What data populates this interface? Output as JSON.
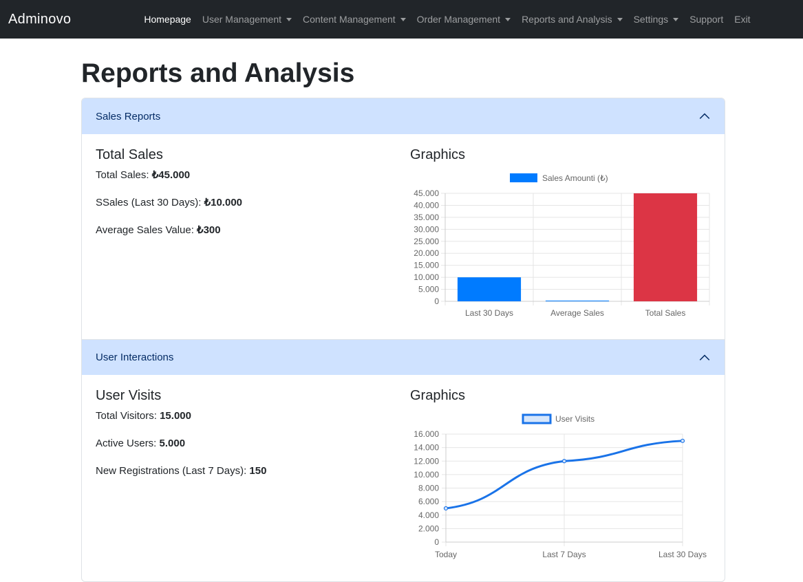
{
  "navbar": {
    "brand": "Adminovo",
    "items": [
      {
        "label": "Homepage",
        "active": true,
        "dropdown": false
      },
      {
        "label": "User Management",
        "active": false,
        "dropdown": true
      },
      {
        "label": "Content Management",
        "active": false,
        "dropdown": true
      },
      {
        "label": "Order Management",
        "active": false,
        "dropdown": true
      },
      {
        "label": "Reports and Analysis",
        "active": false,
        "dropdown": true
      },
      {
        "label": "Settings",
        "active": false,
        "dropdown": true
      },
      {
        "label": "Support",
        "active": false,
        "dropdown": false
      },
      {
        "label": "Exit",
        "active": false,
        "dropdown": false
      }
    ]
  },
  "page": {
    "title": "Reports and Analysis"
  },
  "sections": {
    "sales": {
      "header": "Sales Reports",
      "heading": "Total Sales",
      "graphics_heading": "Graphics",
      "stats": [
        {
          "label": "Total Sales: ",
          "value": "₺45.000"
        },
        {
          "label": "SSales (Last 30 Days): ",
          "value": "₺10.000"
        },
        {
          "label": "Average Sales Value: ",
          "value": "₺300"
        }
      ]
    },
    "users": {
      "header": "User Interactions",
      "heading": "User Visits",
      "graphics_heading": "Graphics",
      "stats": [
        {
          "label": "Total Visitors: ",
          "value": "15.000"
        },
        {
          "label": "Active Users: ",
          "value": "5.000"
        },
        {
          "label": "New Registrations (Last 7 Days): ",
          "value": "150"
        }
      ]
    }
  },
  "colors": {
    "blue": "#007bff",
    "red": "#dc3545",
    "accordion_bg": "#cfe2ff"
  },
  "chart_data": [
    {
      "type": "bar",
      "categories": [
        "Last 30 Days",
        "Average Sales",
        "Total Sales"
      ],
      "series": [
        {
          "name": "Sales Amounti (₺)",
          "values": [
            10000,
            300,
            45000
          ]
        }
      ],
      "colors": [
        "#007bff",
        "#007bff",
        "#dc3545"
      ],
      "ylim": [
        0,
        45000
      ],
      "yticks": [
        "0",
        "5.000",
        "10.000",
        "15.000",
        "20.000",
        "25.000",
        "30.000",
        "35.000",
        "40.000",
        "45.000"
      ],
      "legend": "top"
    },
    {
      "type": "line",
      "categories": [
        "Today",
        "Last 7 Days",
        "Last 30 Days"
      ],
      "series": [
        {
          "name": "User Visits",
          "values": [
            5000,
            12000,
            15000
          ]
        }
      ],
      "color": "#1a73e8",
      "ylim": [
        0,
        16000
      ],
      "yticks": [
        "0",
        "2.000",
        "4.000",
        "6.000",
        "8.000",
        "10.000",
        "12.000",
        "14.000",
        "16.000"
      ],
      "legend": "top"
    }
  ]
}
